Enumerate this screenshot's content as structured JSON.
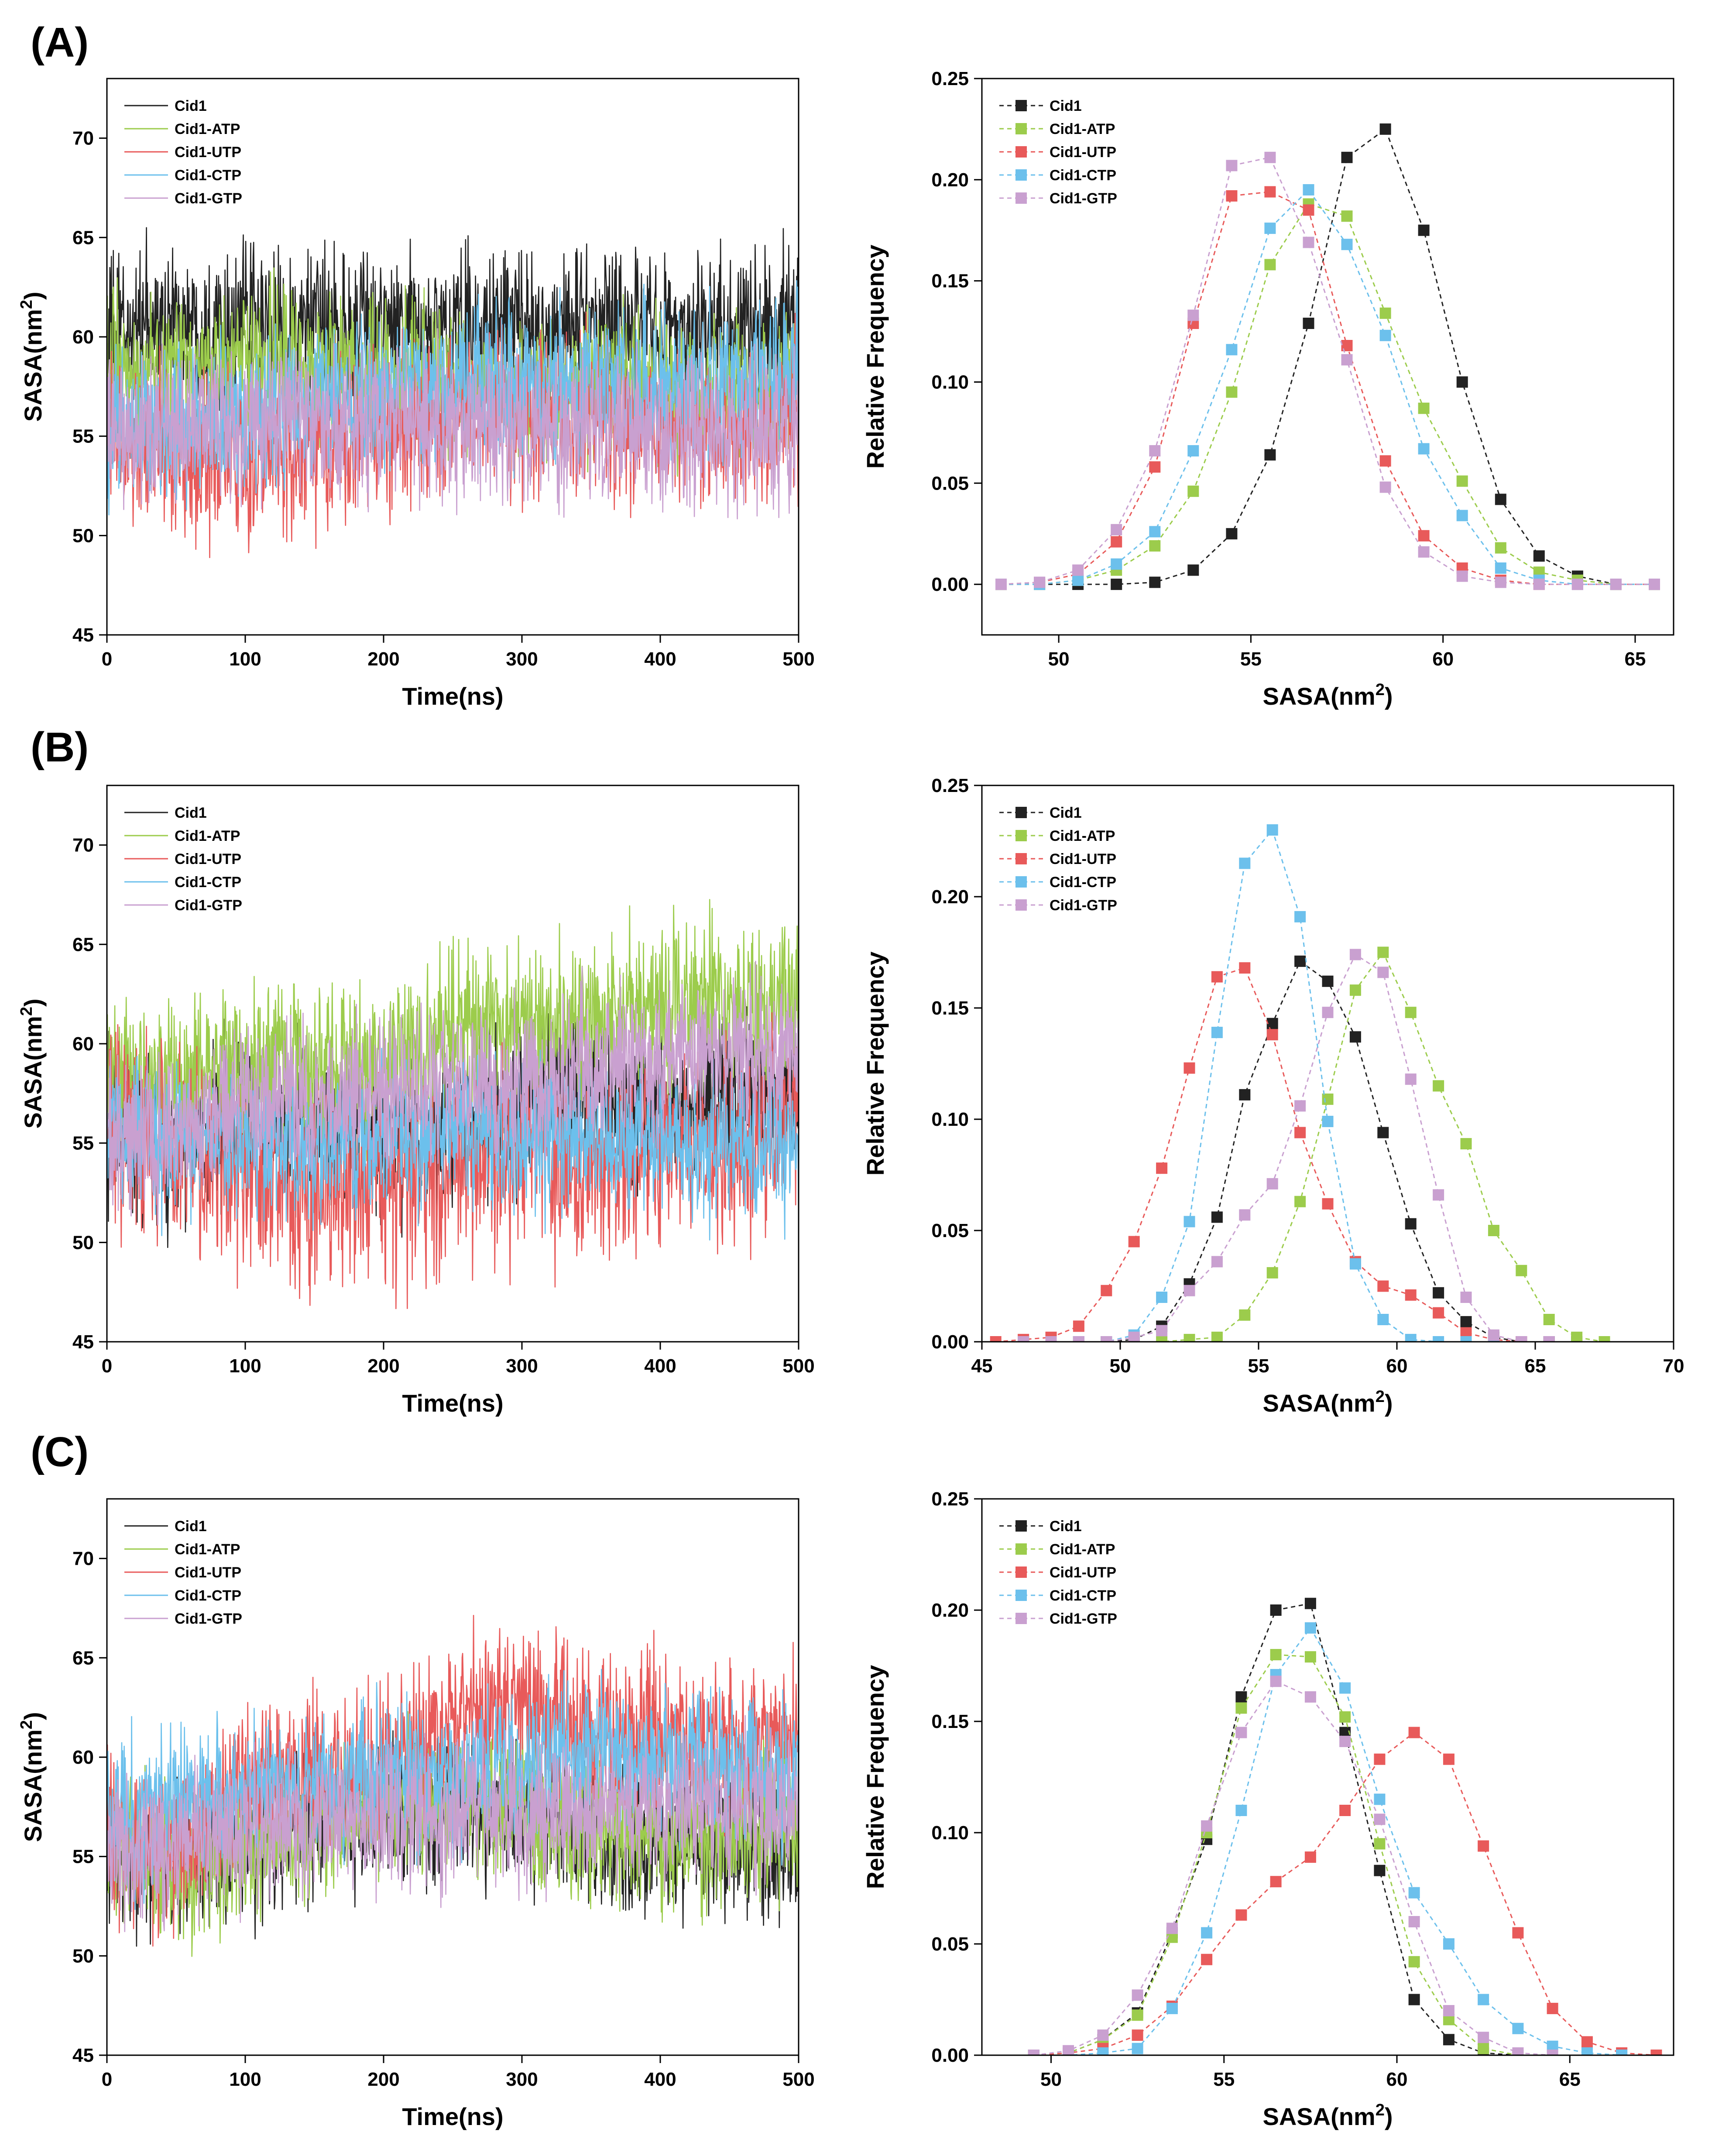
{
  "figure": {
    "panels": [
      {
        "label": "(A)"
      },
      {
        "label": "(B)"
      },
      {
        "label": "(C)"
      }
    ]
  },
  "colors": {
    "Cid1": "#222222",
    "Cid1-ATP": "#9ccc4c",
    "Cid1-UTP": "#e85a5a",
    "Cid1-CTP": "#6cc0ec",
    "Cid1-GTP": "#c9a0d0"
  },
  "chart_data": [
    {
      "id": "A-time",
      "panel": "(A)",
      "type": "line",
      "xlabel": "Time(ns)",
      "ylabel": "SASA(nm²)",
      "xlim": [
        0,
        500
      ],
      "ylim": [
        45,
        73
      ],
      "xticks": [
        0,
        100,
        200,
        300,
        400,
        500
      ],
      "yticks": [
        45,
        50,
        55,
        60,
        65,
        70
      ],
      "legend": [
        "Cid1",
        "Cid1-ATP",
        "Cid1-UTP",
        "Cid1-CTP",
        "Cid1-GTP"
      ],
      "series": [
        {
          "name": "Cid1",
          "base": [
            60.2,
            60.5,
            60.4,
            60.3,
            60.2,
            60.1,
            60.4,
            60.5,
            60.4,
            60.3,
            60.5
          ],
          "amp": 2.2
        },
        {
          "name": "Cid1-ATP",
          "base": [
            58.4,
            58.6,
            58.8,
            58.5,
            58.3,
            57.8,
            57.6,
            57.8,
            57.5,
            57.3,
            57.7
          ],
          "amp": 2.0
        },
        {
          "name": "Cid1-UTP",
          "base": [
            55.0,
            54.0,
            53.8,
            54.5,
            55.3,
            55.8,
            56.4,
            55.8,
            55.6,
            55.5,
            55.8
          ],
          "amp": 2.2
        },
        {
          "name": "Cid1-CTP",
          "base": [
            55.0,
            55.8,
            56.0,
            56.6,
            57.4,
            58.0,
            57.5,
            57.8,
            57.6,
            57.8,
            58.3
          ],
          "amp": 2.0
        },
        {
          "name": "Cid1-GTP",
          "base": [
            55.0,
            55.6,
            56.0,
            55.8,
            55.6,
            55.5,
            55.3,
            55.2,
            55.0,
            55.2,
            55.3
          ],
          "amp": 2.0
        }
      ]
    },
    {
      "id": "A-dist",
      "panel": "(A)",
      "type": "line",
      "xlabel": "SASA(nm²)",
      "ylabel": "Relative Frequency",
      "xlim": [
        48,
        66
      ],
      "ylim": [
        -0.025,
        0.25
      ],
      "xticks": [
        50,
        55,
        60,
        65
      ],
      "yticks": [
        0.0,
        0.05,
        0.1,
        0.15,
        0.2,
        0.25
      ],
      "legend": [
        "Cid1",
        "Cid1-ATP",
        "Cid1-UTP",
        "Cid1-CTP",
        "Cid1-GTP"
      ],
      "series": [
        {
          "name": "Cid1",
          "x": [
            48.5,
            49.5,
            50.5,
            51.5,
            52.5,
            53.5,
            54.5,
            55.5,
            56.5,
            57.5,
            58.5,
            59.5,
            60.5,
            61.5,
            62.5,
            63.5,
            64.5,
            65.5
          ],
          "values": [
            0,
            0,
            0,
            0,
            0.001,
            0.007,
            0.025,
            0.064,
            0.129,
            0.211,
            0.225,
            0.175,
            0.1,
            0.042,
            0.014,
            0.004,
            0,
            0
          ]
        },
        {
          "name": "Cid1-ATP",
          "x": [
            48.5,
            49.5,
            50.5,
            51.5,
            52.5,
            53.5,
            54.5,
            55.5,
            56.5,
            57.5,
            58.5,
            59.5,
            60.5,
            61.5,
            62.5,
            63.5,
            64.5,
            65.5
          ],
          "values": [
            0,
            0,
            0.002,
            0.007,
            0.019,
            0.046,
            0.095,
            0.158,
            0.188,
            0.182,
            0.134,
            0.087,
            0.051,
            0.018,
            0.006,
            0.002,
            0,
            0
          ]
        },
        {
          "name": "Cid1-UTP",
          "x": [
            48.5,
            49.5,
            50.5,
            51.5,
            52.5,
            53.5,
            54.5,
            55.5,
            56.5,
            57.5,
            58.5,
            59.5,
            60.5,
            61.5,
            62.5,
            63.5,
            64.5,
            65.5
          ],
          "values": [
            0,
            0.001,
            0.005,
            0.021,
            0.058,
            0.129,
            0.192,
            0.194,
            0.185,
            0.118,
            0.061,
            0.024,
            0.008,
            0.002,
            0,
            0,
            0,
            0
          ]
        },
        {
          "name": "Cid1-CTP",
          "x": [
            48.5,
            49.5,
            50.5,
            51.5,
            52.5,
            53.5,
            54.5,
            55.5,
            56.5,
            57.5,
            58.5,
            59.5,
            60.5,
            61.5,
            62.5,
            63.5,
            64.5,
            65.5
          ],
          "values": [
            0,
            0,
            0.002,
            0.01,
            0.026,
            0.066,
            0.116,
            0.176,
            0.195,
            0.168,
            0.123,
            0.067,
            0.034,
            0.008,
            0.002,
            0,
            0,
            0
          ]
        },
        {
          "name": "Cid1-GTP",
          "x": [
            48.5,
            49.5,
            50.5,
            51.5,
            52.5,
            53.5,
            54.5,
            55.5,
            56.5,
            57.5,
            58.5,
            59.5,
            60.5,
            61.5,
            62.5,
            63.5,
            64.5,
            65.5
          ],
          "values": [
            0,
            0.001,
            0.007,
            0.027,
            0.066,
            0.133,
            0.207,
            0.211,
            0.169,
            0.111,
            0.048,
            0.016,
            0.004,
            0.001,
            0,
            0,
            0,
            0
          ]
        }
      ]
    },
    {
      "id": "B-time",
      "panel": "(B)",
      "type": "line",
      "xlabel": "Time(ns)",
      "ylabel": "SASA(nm²)",
      "xlim": [
        0,
        500
      ],
      "ylim": [
        45,
        73
      ],
      "xticks": [
        0,
        100,
        200,
        300,
        400,
        500
      ],
      "yticks": [
        45,
        50,
        55,
        60,
        65,
        70
      ],
      "legend": [
        "Cid1",
        "Cid1-ATP",
        "Cid1-UTP",
        "Cid1-CTP",
        "Cid1-GTP"
      ],
      "series": [
        {
          "name": "Cid1",
          "base": [
            56.0,
            54.5,
            56.0,
            56.0,
            55.0,
            56.0,
            57.0,
            57.5,
            57.0,
            57.5,
            58.0
          ],
          "amp": 2.2
        },
        {
          "name": "Cid1-ATP",
          "base": [
            59.0,
            58.0,
            59.0,
            59.0,
            59.0,
            60.5,
            61.0,
            61.5,
            62.0,
            62.0,
            62.0
          ],
          "amp": 2.2
        },
        {
          "name": "Cid1-UTP",
          "base": [
            56.0,
            54.5,
            53.5,
            52.5,
            53.0,
            54.0,
            54.5,
            53.5,
            55.0,
            54.5,
            56.5
          ],
          "amp": 2.6
        },
        {
          "name": "Cid1-CTP",
          "base": [
            56.0,
            55.0,
            55.5,
            55.0,
            55.0,
            55.5,
            55.5,
            55.5,
            55.0,
            55.0,
            55.0
          ],
          "amp": 2.0
        },
        {
          "name": "Cid1-GTP",
          "base": [
            55.0,
            55.5,
            57.0,
            57.5,
            57.5,
            58.0,
            58.0,
            59.0,
            59.5,
            59.5,
            59.5
          ],
          "amp": 2.0
        }
      ]
    },
    {
      "id": "B-dist",
      "panel": "(B)",
      "type": "line",
      "xlabel": "SASA(nm²)",
      "ylabel": "Relative Frequency",
      "xlim": [
        45,
        70
      ],
      "ylim": [
        0,
        0.25
      ],
      "xticks": [
        45,
        50,
        55,
        60,
        65,
        70
      ],
      "yticks": [
        0.0,
        0.05,
        0.1,
        0.15,
        0.2,
        0.25
      ],
      "legend": [
        "Cid1",
        "Cid1-ATP",
        "Cid1-UTP",
        "Cid1-CTP",
        "Cid1-GTP"
      ],
      "series": [
        {
          "name": "Cid1",
          "x": [
            46.5,
            47.5,
            48.5,
            49.5,
            50.5,
            51.5,
            52.5,
            53.5,
            54.5,
            55.5,
            56.5,
            57.5,
            58.5,
            59.5,
            60.5,
            61.5,
            62.5,
            63.5,
            64.5,
            65.5,
            66.5,
            67.5
          ],
          "values": [
            0,
            0,
            0,
            0,
            0.001,
            0.007,
            0.026,
            0.056,
            0.111,
            0.143,
            0.171,
            0.162,
            0.137,
            0.094,
            0.053,
            0.022,
            0.009,
            0.002,
            0,
            0,
            0,
            0
          ]
        },
        {
          "name": "Cid1-ATP",
          "x": [
            46.5,
            47.5,
            48.5,
            49.5,
            50.5,
            51.5,
            52.5,
            53.5,
            54.5,
            55.5,
            56.5,
            57.5,
            58.5,
            59.5,
            60.5,
            61.5,
            62.5,
            63.5,
            64.5,
            65.5,
            66.5,
            67.5
          ],
          "values": [
            0,
            0,
            0,
            0,
            0,
            0,
            0.001,
            0.002,
            0.012,
            0.031,
            0.063,
            0.109,
            0.158,
            0.175,
            0.148,
            0.115,
            0.089,
            0.05,
            0.032,
            0.01,
            0.002,
            0
          ]
        },
        {
          "name": "Cid1-UTP",
          "x": [
            45.5,
            46.5,
            47.5,
            48.5,
            49.5,
            50.5,
            51.5,
            52.5,
            53.5,
            54.5,
            55.5,
            56.5,
            57.5,
            58.5,
            59.5,
            60.5,
            61.5,
            62.5,
            63.5,
            64.5
          ],
          "values": [
            0,
            0.001,
            0.002,
            0.007,
            0.023,
            0.045,
            0.078,
            0.123,
            0.164,
            0.168,
            0.138,
            0.094,
            0.062,
            0.036,
            0.025,
            0.021,
            0.013,
            0.004,
            0.001,
            0
          ]
        },
        {
          "name": "Cid1-CTP",
          "x": [
            46.5,
            47.5,
            48.5,
            49.5,
            50.5,
            51.5,
            52.5,
            53.5,
            54.5,
            55.5,
            56.5,
            57.5,
            58.5,
            59.5,
            60.5,
            61.5,
            62.5,
            63.5
          ],
          "values": [
            0,
            0,
            0,
            0,
            0.003,
            0.02,
            0.054,
            0.139,
            0.215,
            0.23,
            0.191,
            0.099,
            0.035,
            0.01,
            0.001,
            0,
            0,
            0
          ]
        },
        {
          "name": "Cid1-GTP",
          "x": [
            46.5,
            47.5,
            48.5,
            49.5,
            50.5,
            51.5,
            52.5,
            53.5,
            54.5,
            55.5,
            56.5,
            57.5,
            58.5,
            59.5,
            60.5,
            61.5,
            62.5,
            63.5,
            64.5,
            65.5
          ],
          "values": [
            0,
            0,
            0,
            0,
            0.002,
            0.005,
            0.023,
            0.036,
            0.057,
            0.071,
            0.106,
            0.148,
            0.174,
            0.166,
            0.118,
            0.066,
            0.02,
            0.003,
            0,
            0
          ]
        }
      ]
    },
    {
      "id": "C-time",
      "panel": "(C)",
      "type": "line",
      "xlabel": "Time(ns)",
      "ylabel": "SASA(nm²)",
      "xlim": [
        0,
        500
      ],
      "ylim": [
        45,
        73
      ],
      "xticks": [
        0,
        100,
        200,
        300,
        400,
        500
      ],
      "yticks": [
        45,
        50,
        55,
        60,
        65,
        70
      ],
      "legend": [
        "Cid1",
        "Cid1-ATP",
        "Cid1-UTP",
        "Cid1-CTP",
        "Cid1-GTP"
      ],
      "series": [
        {
          "name": "Cid1",
          "base": [
            55.0,
            54.5,
            55.5,
            56.5,
            57.0,
            57.5,
            57.0,
            56.0,
            55.5,
            55.5,
            55.5
          ],
          "amp": 2.0
        },
        {
          "name": "Cid1-ATP",
          "base": [
            56.0,
            54.5,
            55.5,
            56.5,
            57.5,
            58.0,
            57.5,
            56.0,
            56.0,
            56.0,
            57.0
          ],
          "amp": 2.0
        },
        {
          "name": "Cid1-UTP",
          "base": [
            56.0,
            55.5,
            58.5,
            59.0,
            59.5,
            62.0,
            62.5,
            61.0,
            61.0,
            61.0,
            61.0
          ],
          "amp": 2.2
        },
        {
          "name": "Cid1-CTP",
          "base": [
            57.0,
            58.0,
            58.5,
            58.5,
            59.0,
            59.0,
            59.5,
            60.5,
            60.0,
            59.5,
            59.0
          ],
          "amp": 2.0
        },
        {
          "name": "Cid1-GTP",
          "base": [
            55.0,
            55.5,
            56.5,
            56.5,
            57.0,
            57.0,
            57.0,
            57.5,
            57.5,
            57.5,
            57.5
          ],
          "amp": 2.0
        }
      ]
    },
    {
      "id": "C-dist",
      "panel": "(C)",
      "type": "line",
      "xlabel": "SASA(nm²)",
      "ylabel": "Relative Frequency",
      "xlim": [
        48,
        68
      ],
      "ylim": [
        0,
        0.25
      ],
      "xticks": [
        50,
        55,
        60,
        65
      ],
      "yticks": [
        0.0,
        0.05,
        0.1,
        0.15,
        0.2,
        0.25
      ],
      "legend": [
        "Cid1",
        "Cid1-ATP",
        "Cid1-UTP",
        "Cid1-CTP",
        "Cid1-GTP"
      ],
      "series": [
        {
          "name": "Cid1",
          "x": [
            49.5,
            50.5,
            51.5,
            52.5,
            53.5,
            54.5,
            55.5,
            56.5,
            57.5,
            58.5,
            59.5,
            60.5,
            61.5,
            62.5,
            63.5
          ],
          "values": [
            0,
            0.001,
            0.007,
            0.019,
            0.055,
            0.097,
            0.161,
            0.2,
            0.203,
            0.145,
            0.083,
            0.025,
            0.007,
            0.001,
            0
          ]
        },
        {
          "name": "Cid1-ATP",
          "x": [
            49.5,
            50.5,
            51.5,
            52.5,
            53.5,
            54.5,
            55.5,
            56.5,
            57.5,
            58.5,
            59.5,
            60.5,
            61.5,
            62.5,
            63.5
          ],
          "values": [
            0,
            0.001,
            0.007,
            0.018,
            0.053,
            0.1,
            0.156,
            0.18,
            0.179,
            0.152,
            0.095,
            0.042,
            0.016,
            0.003,
            0
          ]
        },
        {
          "name": "Cid1-UTP",
          "x": [
            49.5,
            50.5,
            51.5,
            52.5,
            53.5,
            54.5,
            55.5,
            56.5,
            57.5,
            58.5,
            59.5,
            60.5,
            61.5,
            62.5,
            63.5,
            64.5,
            65.5,
            66.5,
            67.5
          ],
          "values": [
            0,
            0.001,
            0.003,
            0.009,
            0.022,
            0.043,
            0.063,
            0.078,
            0.089,
            0.11,
            0.133,
            0.145,
            0.133,
            0.094,
            0.055,
            0.021,
            0.006,
            0.001,
            0
          ]
        },
        {
          "name": "Cid1-CTP",
          "x": [
            49.5,
            50.5,
            51.5,
            52.5,
            53.5,
            54.5,
            55.5,
            56.5,
            57.5,
            58.5,
            59.5,
            60.5,
            61.5,
            62.5,
            63.5,
            64.5,
            65.5,
            66.5
          ],
          "values": [
            0,
            0,
            0.001,
            0.003,
            0.021,
            0.055,
            0.11,
            0.171,
            0.192,
            0.165,
            0.115,
            0.073,
            0.05,
            0.025,
            0.012,
            0.004,
            0.001,
            0
          ]
        },
        {
          "name": "Cid1-GTP",
          "x": [
            49.5,
            50.5,
            51.5,
            52.5,
            53.5,
            54.5,
            55.5,
            56.5,
            57.5,
            58.5,
            59.5,
            60.5,
            61.5,
            62.5,
            63.5,
            64.5
          ],
          "values": [
            0,
            0.002,
            0.009,
            0.027,
            0.057,
            0.103,
            0.145,
            0.168,
            0.161,
            0.141,
            0.106,
            0.06,
            0.02,
            0.008,
            0.001,
            0
          ]
        }
      ]
    }
  ]
}
